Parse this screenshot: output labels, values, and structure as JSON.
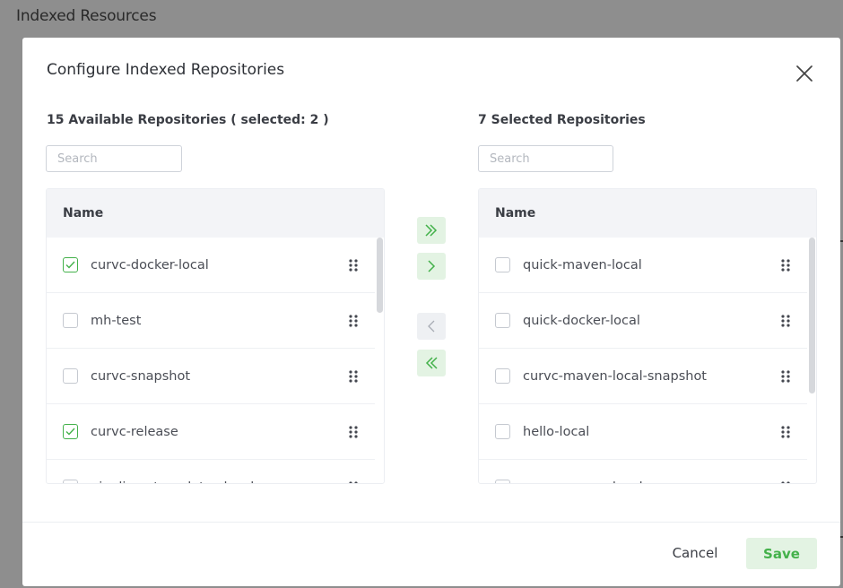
{
  "background": {
    "page_title": "Indexed Resources"
  },
  "modal": {
    "title": "Configure Indexed Repositories",
    "close_icon": "close-icon"
  },
  "available": {
    "heading": "15 Available Repositories ( selected: 2 )",
    "search_placeholder": "Search",
    "column_name": "Name",
    "rows": [
      {
        "label": "curvc-docker-local",
        "checked": true
      },
      {
        "label": "mh-test",
        "checked": false
      },
      {
        "label": "curvc-snapshot",
        "checked": false
      },
      {
        "label": "curvc-release",
        "checked": true
      },
      {
        "label": "pipelines-templates-local",
        "checked": false
      }
    ]
  },
  "selected": {
    "heading": "7 Selected Repositories",
    "search_placeholder": "Search",
    "column_name": "Name",
    "rows": [
      {
        "label": "quick-maven-local",
        "checked": false
      },
      {
        "label": "quick-docker-local",
        "checked": false
      },
      {
        "label": "curvc-maven-local-snapshot",
        "checked": false
      },
      {
        "label": "hello-local",
        "checked": false
      },
      {
        "label": "curvc-maven-local",
        "checked": false
      }
    ]
  },
  "transfer": {
    "move_all_right_icon": "double-chevron-right-icon",
    "move_right_icon": "chevron-right-icon",
    "move_left_icon": "chevron-left-icon",
    "move_all_left_icon": "double-chevron-left-icon"
  },
  "footer": {
    "cancel_label": "Cancel",
    "save_label": "Save"
  },
  "colors": {
    "accent": "#43b14a",
    "accent_bg": "#e3f3e3",
    "disabled_bg": "#eef0f3",
    "header_bg": "#f3f4f7"
  }
}
